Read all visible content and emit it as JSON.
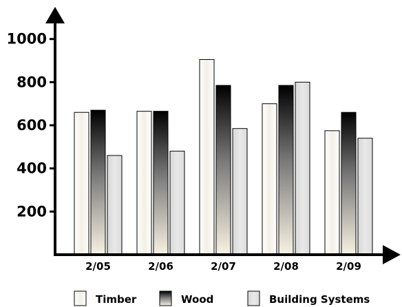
{
  "chart_data": {
    "type": "bar",
    "categories": [
      "2/05",
      "2/06",
      "2/07",
      "2/08",
      "2/09"
    ],
    "series": [
      {
        "name": "Timber",
        "values": [
          660,
          665,
          905,
          700,
          575
        ],
        "color": "#f7f4ec"
      },
      {
        "name": "Wood",
        "values": [
          670,
          665,
          785,
          785,
          660
        ],
        "color": "gradient-black-to-cream"
      },
      {
        "name": "Building Systems",
        "values": [
          460,
          480,
          585,
          800,
          540
        ],
        "color": "#e0e0e0"
      }
    ],
    "yticks": [
      200,
      400,
      600,
      800,
      1000
    ],
    "ylim": [
      0,
      1000
    ],
    "grid": false,
    "legend_position": "bottom"
  }
}
